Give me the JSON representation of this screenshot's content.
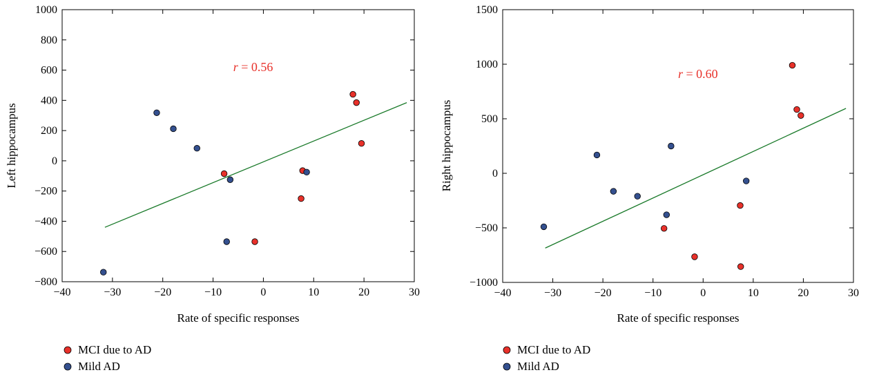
{
  "colors": {
    "mci": "#e8312a",
    "mild": "#34508f",
    "fit_line": "#1a7a2a",
    "annotation": "#e8312a"
  },
  "chart_data": [
    {
      "type": "scatter",
      "xlabel": "Rate of specific responses",
      "ylabel": "Left hippocampus",
      "xlim": [
        -40,
        30
      ],
      "ylim": [
        -800,
        1000
      ],
      "xticks": [
        -40,
        -30,
        -20,
        -10,
        0,
        10,
        20,
        30
      ],
      "yticks": [
        -800,
        -600,
        -400,
        -200,
        0,
        200,
        400,
        600,
        800,
        1000
      ],
      "xtick_labels": [
        "−40",
        "−30",
        "−20",
        "−10",
        "0",
        "10",
        "20",
        "30"
      ],
      "ytick_labels": [
        "−800",
        "−600",
        "−400",
        "−200",
        "0",
        "200",
        "400",
        "600",
        "800",
        "1000"
      ],
      "annotation": {
        "var": "r",
        "rest": " = 0.56",
        "x": -6,
        "y": 620
      },
      "fit_line": {
        "x": [
          -31.5,
          28.5
        ],
        "y": [
          -440,
          385
        ]
      },
      "series": [
        {
          "name": "MCI due to AD",
          "color": "#e8312a",
          "points": [
            {
              "x": 17.8,
              "y": 440
            },
            {
              "x": 18.5,
              "y": 385
            },
            {
              "x": 19.5,
              "y": 115
            },
            {
              "x": -7.8,
              "y": -85
            },
            {
              "x": 7.8,
              "y": -65
            },
            {
              "x": 7.5,
              "y": -250
            },
            {
              "x": -1.7,
              "y": -535
            }
          ]
        },
        {
          "name": "Mild AD",
          "color": "#34508f",
          "points": [
            {
              "x": -21.2,
              "y": 318
            },
            {
              "x": -17.9,
              "y": 212
            },
            {
              "x": -13.2,
              "y": 83
            },
            {
              "x": -6.6,
              "y": -125
            },
            {
              "x": 8.6,
              "y": -75
            },
            {
              "x": -7.3,
              "y": -535
            },
            {
              "x": -31.8,
              "y": -737
            }
          ]
        }
      ],
      "legend": [
        {
          "label": "MCI due to AD",
          "color": "#e8312a"
        },
        {
          "label": "Mild AD",
          "color": "#34508f"
        }
      ],
      "legend_position": "below"
    },
    {
      "type": "scatter",
      "xlabel": "Rate of specific responses",
      "ylabel": "Right hippocampus",
      "xlim": [
        -40,
        30
      ],
      "ylim": [
        -1000,
        1500
      ],
      "xticks": [
        -40,
        -30,
        -20,
        -10,
        0,
        10,
        20,
        30
      ],
      "yticks": [
        -1000,
        -500,
        0,
        500,
        1000,
        1500
      ],
      "xtick_labels": [
        "−40",
        "−30",
        "−20",
        "−10",
        "0",
        "10",
        "20",
        "30"
      ],
      "ytick_labels": [
        "−1000",
        "−500",
        "0",
        "500",
        "1000",
        "1500"
      ],
      "annotation": {
        "var": "r",
        "rest": " = 0.60",
        "x": -5,
        "y": 910
      },
      "fit_line": {
        "x": [
          -31.5,
          28.5
        ],
        "y": [
          -685,
          595
        ]
      },
      "series": [
        {
          "name": "MCI due to AD",
          "color": "#e8312a",
          "points": [
            {
              "x": 17.8,
              "y": 990
            },
            {
              "x": 18.7,
              "y": 585
            },
            {
              "x": 19.5,
              "y": 530
            },
            {
              "x": 7.4,
              "y": -295
            },
            {
              "x": -7.8,
              "y": -505
            },
            {
              "x": -1.7,
              "y": -765
            },
            {
              "x": 7.5,
              "y": -855
            }
          ]
        },
        {
          "name": "Mild AD",
          "color": "#34508f",
          "points": [
            {
              "x": -21.2,
              "y": 168
            },
            {
              "x": -6.4,
              "y": 250
            },
            {
              "x": -17.9,
              "y": -165
            },
            {
              "x": -13.1,
              "y": -210
            },
            {
              "x": -7.3,
              "y": -380
            },
            {
              "x": 8.6,
              "y": -70
            },
            {
              "x": -31.8,
              "y": -490
            }
          ]
        }
      ],
      "legend": [
        {
          "label": "MCI due to AD",
          "color": "#e8312a"
        },
        {
          "label": "Mild AD",
          "color": "#34508f"
        }
      ],
      "legend_position": "below"
    }
  ]
}
